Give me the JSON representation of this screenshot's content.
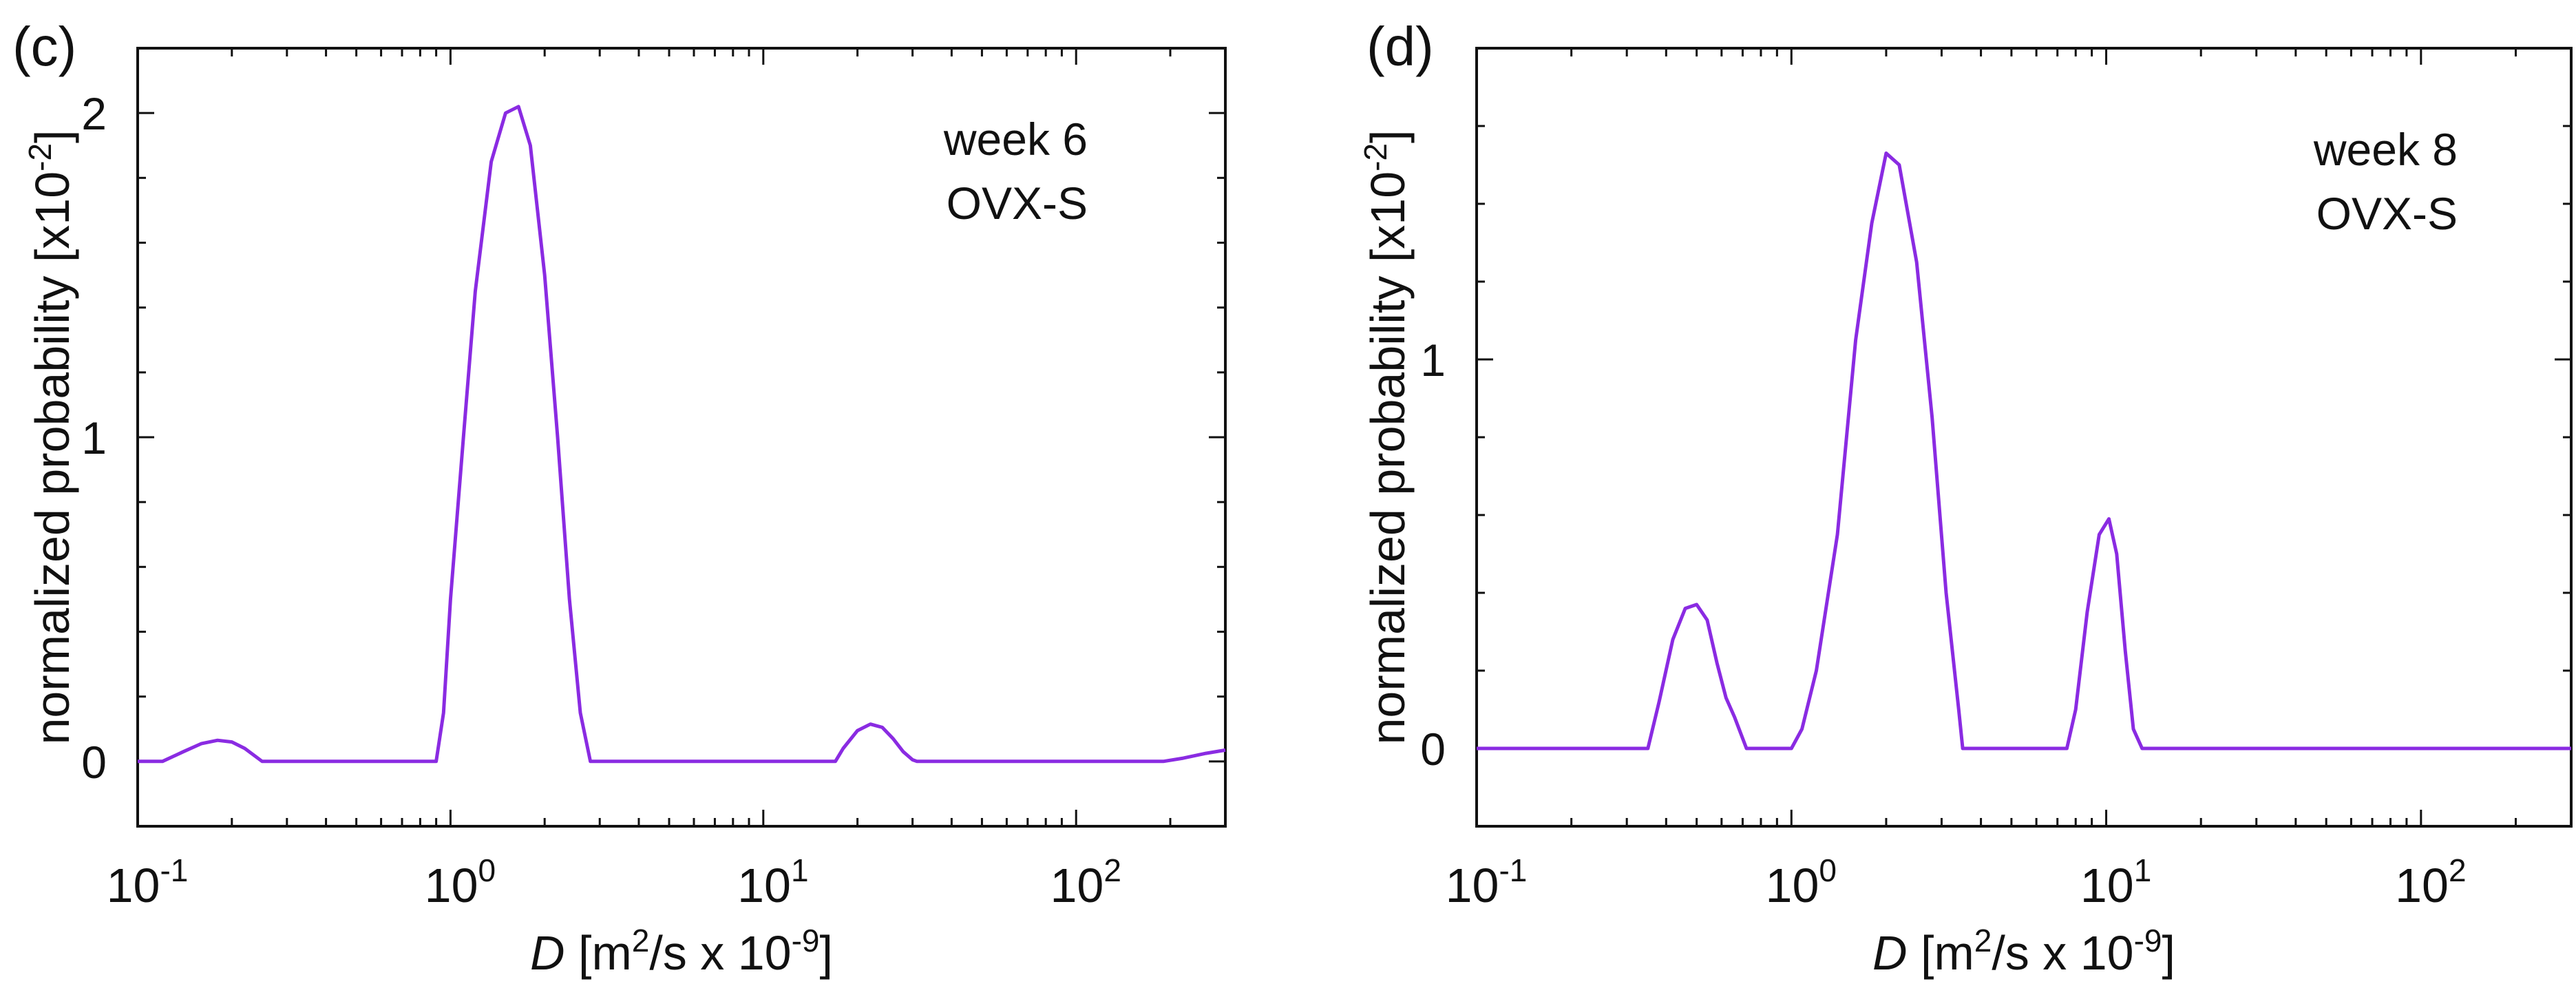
{
  "colors": {
    "curve": "#8a2be2",
    "axes": "#111111"
  },
  "chart_data": [
    {
      "type": "line",
      "panel_label": "(c)",
      "title": "",
      "annotation_lines": [
        "week 6",
        "OVX-S"
      ],
      "xscale": "log",
      "xlim": [
        0.1,
        300
      ],
      "ylim": [
        -0.2,
        2.2
      ],
      "xticks": [
        {
          "value": 0.1,
          "base": "10",
          "exp": "-1"
        },
        {
          "value": 1,
          "base": "10",
          "exp": "0"
        },
        {
          "value": 10,
          "base": "10",
          "exp": "1"
        },
        {
          "value": 100,
          "base": "10",
          "exp": "2"
        }
      ],
      "yticks": [
        {
          "value": 0,
          "label": "0"
        },
        {
          "value": 1,
          "label": "1"
        },
        {
          "value": 2,
          "label": "2"
        }
      ],
      "xlabel": {
        "italic": "D",
        "text1": " [m",
        "sup1": "2",
        "text2": "/s x 10",
        "sup2": "-9",
        "text3": "]"
      },
      "ylabel": {
        "text": "normalized probability [x10",
        "sup": "-2",
        "end": "]"
      },
      "series": [
        {
          "name": "week 6 OVX-S",
          "x": [
            0.1,
            0.12,
            0.14,
            0.16,
            0.18,
            0.2,
            0.22,
            0.25,
            0.3,
            0.5,
            0.7,
            0.9,
            0.95,
            1.0,
            1.1,
            1.2,
            1.35,
            1.5,
            1.65,
            1.8,
            2.0,
            2.2,
            2.4,
            2.6,
            2.8,
            3.0,
            5,
            10,
            17,
            18,
            20,
            22,
            24,
            26,
            28,
            30,
            31,
            50,
            100,
            190,
            220,
            260,
            300
          ],
          "y": [
            0,
            0,
            0.03,
            0.055,
            0.065,
            0.06,
            0.04,
            0.0,
            0,
            0,
            0,
            0,
            0.15,
            0.5,
            1.0,
            1.45,
            1.85,
            2.0,
            2.02,
            1.9,
            1.5,
            1.0,
            0.5,
            0.15,
            0,
            0,
            0,
            0,
            0,
            0.04,
            0.095,
            0.115,
            0.105,
            0.07,
            0.03,
            0.005,
            0,
            0,
            0,
            0,
            0.01,
            0.025,
            0.035
          ]
        }
      ]
    },
    {
      "type": "line",
      "panel_label": "(d)",
      "title": "",
      "annotation_lines": [
        "week 8",
        "OVX-S"
      ],
      "xscale": "log",
      "xlim": [
        0.1,
        300
      ],
      "ylim": [
        -0.2,
        1.8
      ],
      "xticks": [
        {
          "value": 0.1,
          "base": "10",
          "exp": "-1"
        },
        {
          "value": 1,
          "base": "10",
          "exp": "0"
        },
        {
          "value": 10,
          "base": "10",
          "exp": "1"
        },
        {
          "value": 100,
          "base": "10",
          "exp": "2"
        }
      ],
      "yticks": [
        {
          "value": 0,
          "label": "0"
        },
        {
          "value": 1,
          "label": "1"
        }
      ],
      "xlabel": {
        "italic": "D",
        "text1": " [m",
        "sup1": "2",
        "text2": "/s x 10",
        "sup2": "-9",
        "text3": "]"
      },
      "ylabel": {
        "text": "normalized probability [x10",
        "sup": "-2",
        "end": "]"
      },
      "series": [
        {
          "name": "week 8 OVX-S",
          "x": [
            0.1,
            0.2,
            0.35,
            0.38,
            0.42,
            0.46,
            0.5,
            0.54,
            0.58,
            0.62,
            0.66,
            0.72,
            1.0,
            1.08,
            1.2,
            1.4,
            1.6,
            1.8,
            2.0,
            2.2,
            2.5,
            2.8,
            3.1,
            3.4,
            3.5,
            5,
            7.5,
            8,
            8.7,
            9.5,
            10.2,
            10.8,
            11.5,
            12.2,
            13,
            50,
            300
          ],
          "y": [
            0,
            0,
            0,
            0.12,
            0.28,
            0.36,
            0.37,
            0.33,
            0.22,
            0.13,
            0.08,
            0,
            0,
            0.05,
            0.2,
            0.55,
            1.05,
            1.35,
            1.53,
            1.5,
            1.25,
            0.85,
            0.4,
            0.1,
            0,
            0,
            0,
            0.1,
            0.35,
            0.55,
            0.59,
            0.5,
            0.25,
            0.05,
            0,
            0,
            0
          ]
        }
      ]
    }
  ]
}
